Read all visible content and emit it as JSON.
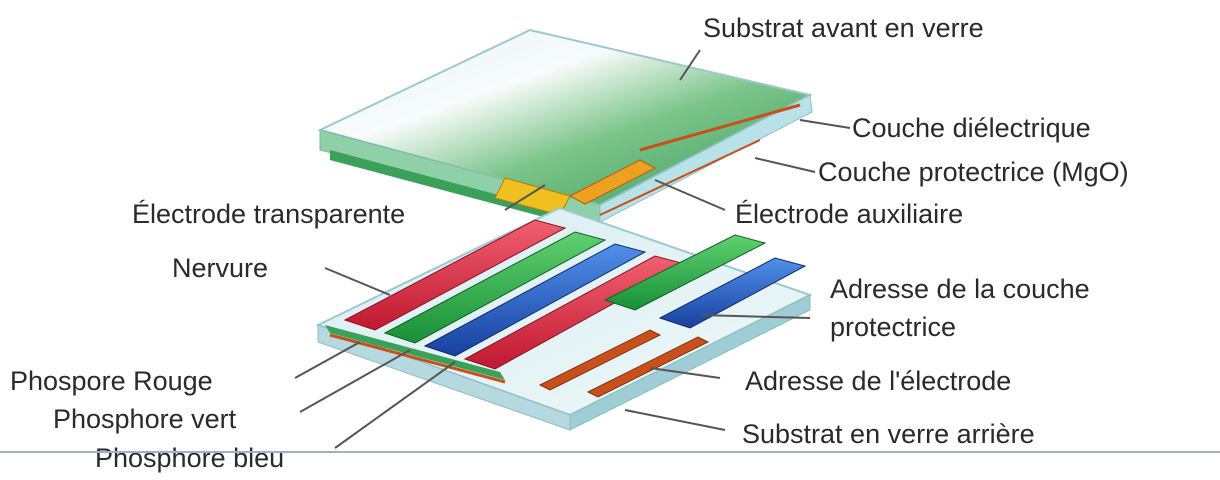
{
  "labels": {
    "front_glass": "Substrat avant en verre",
    "dielectric": "Couche diélectrique",
    "protective": "Couche protectrice (MgO)",
    "transparent_electrode": "Électrode transparente",
    "aux_electrode": "Électrode auxiliaire",
    "rib": "Nervure",
    "address_protective": "Adresse de la couche protectrice",
    "phosphor_red": "Phospore Rouge",
    "address_electrode": "Adresse de l'électrode",
    "phosphor_green": "Phosphore vert",
    "rear_glass": "Substrat en verre arrière",
    "phosphor_blue": "Phosphore bleu"
  },
  "colors": {
    "glass": "#cfeaf0",
    "dielectric_green": "#3aa05a",
    "electrode_yellow": "#f0c020",
    "electrode_orange": "#c8501a",
    "phosphor_red": "#e0283c",
    "phosphor_green": "#28b048",
    "phosphor_blue": "#2860c8",
    "leader": "#555555",
    "text": "#2a2a2a"
  }
}
